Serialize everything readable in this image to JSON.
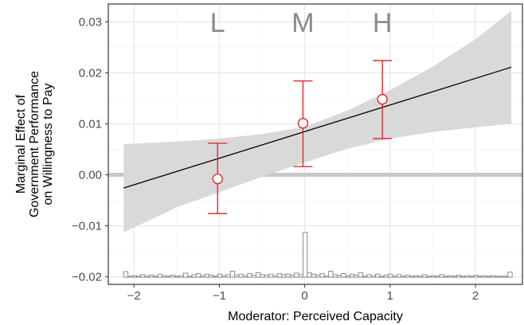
{
  "chart_data": {
    "type": "line",
    "xlabel": "Moderator: Perceived Capacity",
    "ylabel_lines": [
      "Marginal Effect of",
      "Government Performance",
      "on Willingness to Pay"
    ],
    "xlim": [
      -2.3,
      2.55
    ],
    "ylim": [
      -0.0215,
      0.0335
    ],
    "x_ticks": [
      -2,
      -1,
      0,
      1,
      2
    ],
    "x_tick_labels": [
      "−2",
      "−1",
      "0",
      "1",
      "2"
    ],
    "y_ticks": [
      -0.02,
      -0.01,
      0.0,
      0.01,
      0.02,
      0.03
    ],
    "y_tick_labels": [
      "−0.02",
      "−0.01",
      "0.00",
      "0.01",
      "0.02",
      "0.03"
    ],
    "grid": true,
    "reference_line_y": 0.0,
    "marginal_effect_line": {
      "x": [
        -2.12,
        2.42
      ],
      "y": [
        -0.0026,
        0.0211
      ],
      "color": "#000000"
    },
    "confidence_band": {
      "x": [
        -2.12,
        -1.5,
        -1.0,
        -0.5,
        0.0,
        0.5,
        1.0,
        1.5,
        2.0,
        2.42
      ],
      "lower": [
        -0.0113,
        -0.0064,
        -0.0034,
        -0.0004,
        0.0024,
        0.0051,
        0.0071,
        0.0084,
        0.0093,
        0.01
      ],
      "upper": [
        0.006,
        0.0065,
        0.0071,
        0.008,
        0.0094,
        0.0126,
        0.0166,
        0.0212,
        0.0266,
        0.0322
      ],
      "color": "#d9d9d9"
    },
    "binned_estimates": {
      "labels": [
        "L",
        "M",
        "H"
      ],
      "label_y": 0.0299,
      "x": [
        -1.02,
        -0.02,
        0.91
      ],
      "y": [
        -0.0008,
        0.0101,
        0.0148
      ],
      "lower": [
        -0.0076,
        0.0016,
        0.0071
      ],
      "upper": [
        0.0062,
        0.0184,
        0.0224
      ],
      "color": "#e41a1c"
    },
    "histogram": {
      "baseline": -0.0201,
      "color": "#808080",
      "bins": [
        [
          -2.12,
          -2.07,
          0.0011
        ],
        [
          -2.07,
          -2.02,
          0.0002
        ],
        [
          -2.02,
          -1.97,
          0.0003
        ],
        [
          -1.97,
          -1.92,
          0.0002
        ],
        [
          -1.92,
          -1.87,
          0.0005
        ],
        [
          -1.87,
          -1.82,
          0.0002
        ],
        [
          -1.82,
          -1.77,
          0.0004
        ],
        [
          -1.77,
          -1.72,
          0.0002
        ],
        [
          -1.72,
          -1.67,
          0.0006
        ],
        [
          -1.67,
          -1.62,
          0.0003
        ],
        [
          -1.62,
          -1.57,
          0.0002
        ],
        [
          -1.57,
          -1.52,
          0.0004
        ],
        [
          -1.52,
          -1.47,
          0.0002
        ],
        [
          -1.47,
          -1.42,
          0.0003
        ],
        [
          -1.42,
          -1.37,
          0.0008
        ],
        [
          -1.37,
          -1.32,
          0.0002
        ],
        [
          -1.32,
          -1.27,
          0.0005
        ],
        [
          -1.27,
          -1.22,
          0.0007
        ],
        [
          -1.22,
          -1.17,
          0.0003
        ],
        [
          -1.17,
          -1.12,
          0.0006
        ],
        [
          -1.12,
          -1.07,
          0.0004
        ],
        [
          -1.07,
          -1.02,
          0.0002
        ],
        [
          -1.02,
          -0.97,
          0.0006
        ],
        [
          -0.97,
          -0.92,
          0.0003
        ],
        [
          -0.92,
          -0.87,
          0.0005
        ],
        [
          -0.87,
          -0.82,
          0.0012
        ],
        [
          -0.82,
          -0.77,
          0.0004
        ],
        [
          -0.77,
          -0.72,
          0.0006
        ],
        [
          -0.72,
          -0.67,
          0.0003
        ],
        [
          -0.67,
          -0.62,
          0.0007
        ],
        [
          -0.62,
          -0.57,
          0.0004
        ],
        [
          -0.57,
          -0.52,
          0.0009
        ],
        [
          -0.52,
          -0.47,
          0.0005
        ],
        [
          -0.47,
          -0.42,
          0.0004
        ],
        [
          -0.42,
          -0.37,
          0.0006
        ],
        [
          -0.37,
          -0.32,
          0.0003
        ],
        [
          -0.32,
          -0.27,
          0.0007
        ],
        [
          -0.27,
          -0.22,
          0.0005
        ],
        [
          -0.22,
          -0.17,
          0.0006
        ],
        [
          -0.17,
          -0.12,
          0.0004
        ],
        [
          -0.12,
          -0.07,
          0.0008
        ],
        [
          -0.07,
          -0.02,
          0.0005
        ],
        [
          -0.02,
          0.03,
          0.0088
        ],
        [
          0.03,
          0.08,
          0.0009
        ],
        [
          0.08,
          0.13,
          0.0006
        ],
        [
          0.13,
          0.18,
          0.0004
        ],
        [
          0.18,
          0.23,
          0.0007
        ],
        [
          0.23,
          0.28,
          0.0003
        ],
        [
          0.28,
          0.33,
          0.0012
        ],
        [
          0.33,
          0.38,
          0.0005
        ],
        [
          0.38,
          0.43,
          0.0004
        ],
        [
          0.43,
          0.48,
          0.0007
        ],
        [
          0.48,
          0.53,
          0.0003
        ],
        [
          0.53,
          0.58,
          0.0006
        ],
        [
          0.58,
          0.63,
          0.0004
        ],
        [
          0.63,
          0.68,
          0.0009
        ],
        [
          0.68,
          0.73,
          0.0002
        ],
        [
          0.73,
          0.78,
          0.0005
        ],
        [
          0.78,
          0.83,
          0.0003
        ],
        [
          0.83,
          0.88,
          0.0006
        ],
        [
          0.88,
          0.93,
          0.0002
        ],
        [
          0.93,
          0.98,
          0.0004
        ],
        [
          0.98,
          1.03,
          0.0006
        ],
        [
          1.03,
          1.08,
          0.0002
        ],
        [
          1.08,
          1.13,
          0.0005
        ],
        [
          1.13,
          1.18,
          0.0002
        ],
        [
          1.18,
          1.23,
          0.0004
        ],
        [
          1.23,
          1.28,
          0.0002
        ],
        [
          1.28,
          1.33,
          0.0003
        ],
        [
          1.33,
          1.38,
          0.0002
        ],
        [
          1.38,
          1.43,
          0.0005
        ],
        [
          1.43,
          1.48,
          0.0002
        ],
        [
          1.48,
          1.53,
          0.0003
        ],
        [
          1.53,
          1.58,
          0.0002
        ],
        [
          1.58,
          1.63,
          0.0005
        ],
        [
          1.63,
          1.68,
          0.0002
        ],
        [
          1.68,
          1.73,
          0.0003
        ],
        [
          1.73,
          1.78,
          0.0002
        ],
        [
          1.78,
          1.83,
          0.0004
        ],
        [
          1.83,
          1.88,
          0.0002
        ],
        [
          1.88,
          1.93,
          0.0003
        ],
        [
          1.93,
          1.98,
          0.0002
        ],
        [
          1.98,
          2.03,
          0.0004
        ],
        [
          2.03,
          2.08,
          0.0002
        ],
        [
          2.08,
          2.13,
          0.0003
        ],
        [
          2.13,
          2.18,
          0.0002
        ],
        [
          2.18,
          2.23,
          0.0003
        ],
        [
          2.23,
          2.28,
          0.0002
        ],
        [
          2.28,
          2.33,
          0.0002
        ],
        [
          2.33,
          2.38,
          0.0002
        ],
        [
          2.38,
          2.43,
          0.001
        ]
      ]
    }
  }
}
